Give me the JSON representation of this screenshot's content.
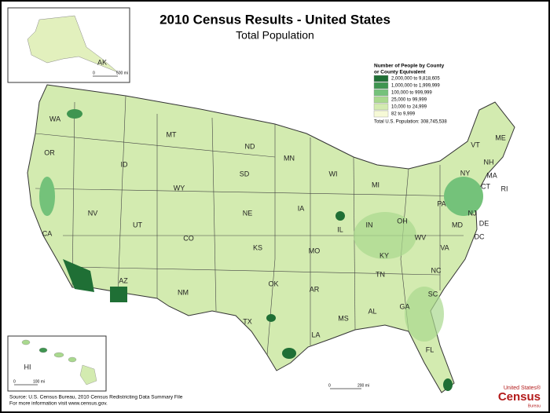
{
  "header": {
    "title": "2010 Census Results - United States",
    "subtitle": "Total Population"
  },
  "legend": {
    "title_lines": [
      "Number of People by County",
      "or County Equivalent"
    ],
    "items": [
      {
        "label": "2,000,000 to 9,818,605",
        "color": "#1f6f35"
      },
      {
        "label": "1,000,000 to 1,999,999",
        "color": "#3f9550"
      },
      {
        "label": "100,000 to 999,999",
        "color": "#74c27a"
      },
      {
        "label": "25,000 to 99,999",
        "color": "#a9d98e"
      },
      {
        "label": "10,000 to 24,999",
        "color": "#d3ebb0"
      },
      {
        "label": "82 to 9,999",
        "color": "#f6f9d6"
      }
    ],
    "total": "Total U.S. Population: 308,745,538"
  },
  "states": [
    "WA",
    "OR",
    "CA",
    "NV",
    "ID",
    "MT",
    "WY",
    "UT",
    "AZ",
    "CO",
    "NM",
    "ND",
    "SD",
    "NE",
    "KS",
    "OK",
    "TX",
    "MN",
    "IA",
    "MO",
    "AR",
    "LA",
    "WI",
    "IL",
    "MS",
    "MI",
    "IN",
    "KY",
    "TN",
    "AL",
    "OH",
    "GA",
    "FL",
    "WV",
    "VA",
    "NC",
    "SC",
    "PA",
    "NY",
    "VT",
    "NH",
    "ME",
    "MA",
    "CT",
    "RI",
    "NJ",
    "DE",
    "MD",
    "DC"
  ],
  "insets": {
    "alaska": {
      "label": "AK",
      "scale_start": "0",
      "scale_end": "500 mi"
    },
    "hawaii": {
      "label": "HI",
      "scale_start": "0",
      "scale_end": "100 mi"
    }
  },
  "main_scale": {
    "start": "0",
    "end": "200 mi"
  },
  "source": [
    "Source:  U.S. Census Bureau, 2010 Census Redistricting Data Summary File",
    "For more information visit www.census.gov."
  ],
  "logo": {
    "top": "United States®",
    "main": "Census",
    "bottom": "Bureau"
  }
}
